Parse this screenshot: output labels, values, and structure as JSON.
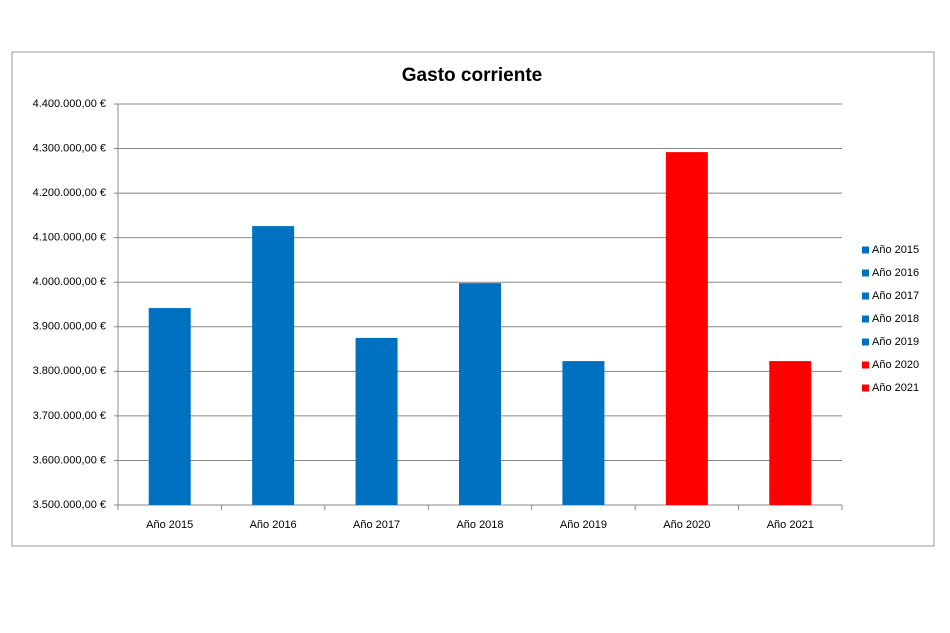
{
  "chart_data": {
    "type": "bar",
    "title": "Gasto corriente",
    "categories": [
      "Año 2015",
      "Año 2016",
      "Año 2017",
      "Año 2018",
      "Año 2019",
      "Año 2020",
      "Año 2021"
    ],
    "values": [
      3942000,
      4126000,
      3875000,
      3998000,
      3823000,
      4292000,
      3823000
    ],
    "colors": [
      "#0070c0",
      "#0070c0",
      "#0070c0",
      "#0070c0",
      "#0070c0",
      "#ff0000",
      "#ff0000"
    ],
    "ylim": [
      3500000,
      4400000
    ],
    "yticks": [
      {
        "value": 3500000,
        "label": "3.500.000,00 €"
      },
      {
        "value": 3600000,
        "label": "3.600.000,00 €"
      },
      {
        "value": 3700000,
        "label": "3.700.000,00 €"
      },
      {
        "value": 3800000,
        "label": "3.800.000,00 €"
      },
      {
        "value": 3900000,
        "label": "3.900.000,00 €"
      },
      {
        "value": 4000000,
        "label": "4.000.000,00 €"
      },
      {
        "value": 4100000,
        "label": "4.100.000,00 €"
      },
      {
        "value": 4200000,
        "label": "4.200.000,00 €"
      },
      {
        "value": 4300000,
        "label": "4.300.000,00 €"
      },
      {
        "value": 4400000,
        "label": "4.400.000,00 €"
      }
    ],
    "grid": true,
    "legend": "right"
  }
}
